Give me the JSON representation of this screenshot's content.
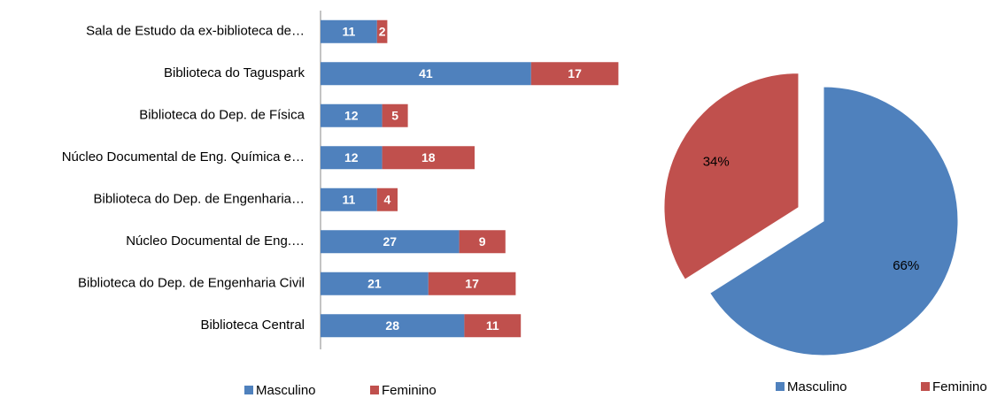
{
  "chart_data": [
    {
      "type": "hbar_stacked",
      "categories": [
        "Sala de Estudo da ex-biblioteca de…",
        "Biblioteca do Taguspark",
        "Biblioteca do Dep. de Física",
        "Núcleo Documental de Eng. Química e…",
        "Biblioteca do Dep. de Engenharia…",
        "Núcleo Documental de Eng.…",
        "Biblioteca do Dep. de Engenharia Civil",
        "Biblioteca Central"
      ],
      "series": [
        {
          "name": "Masculino",
          "color": "#4f81bd",
          "values": [
            11,
            41,
            12,
            12,
            11,
            27,
            21,
            28
          ]
        },
        {
          "name": "Feminino",
          "color": "#c0504d",
          "values": [
            2,
            17,
            5,
            18,
            4,
            9,
            17,
            11
          ]
        }
      ],
      "xlim": [
        0,
        60
      ],
      "legend": "bottom"
    },
    {
      "type": "pie",
      "categories": [
        "Masculino",
        "Feminino"
      ],
      "values": [
        66,
        34
      ],
      "value_labels": [
        "66%",
        "34%"
      ],
      "colors": [
        "#4f81bd",
        "#c0504d"
      ],
      "exploded": true,
      "legend": "bottom"
    }
  ]
}
